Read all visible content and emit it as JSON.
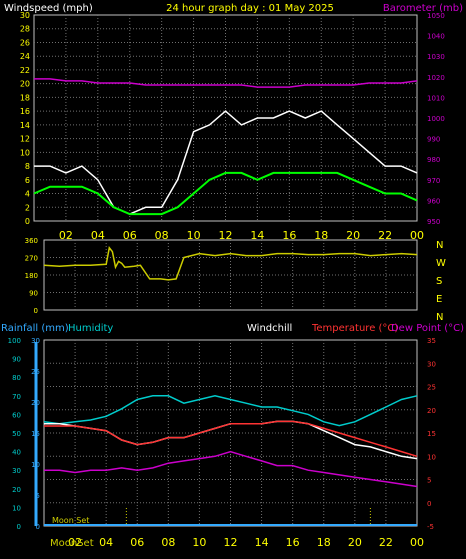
{
  "colors": {
    "background": "#000000",
    "frame": "#c0c0c0",
    "grid": "#707070",
    "axis_text": "#ffff00",
    "title": "#ffff00",
    "windspeed_label": "#ffffff",
    "barometer": "#cc00cc",
    "gust": "#ffffff",
    "average_wind": "#00ff00",
    "direction": "#cccc00",
    "rainfall": "#33aaff",
    "humidity": "#00cccc",
    "windchill": "#ffffff",
    "temperature": "#ff3333",
    "dewpoint": "#cc00cc",
    "moon": "#cccc00"
  },
  "header": {
    "windspeed_label": "Windspeed (mph)",
    "title": "24 hour graph day : 01 May 2025",
    "barometer_label": "Barometer (mb)"
  },
  "panel3_header": {
    "rainfall_label": "Rainfall (mm)",
    "humidity_label": "Humidity",
    "windchill_label": "Windchill",
    "temperature_label": "Temperature (°C)",
    "dewpoint_label": "Dew Point (°C)"
  },
  "x_ticks": [
    "02",
    "04",
    "06",
    "08",
    "10",
    "12",
    "14",
    "16",
    "18",
    "20",
    "22",
    "00"
  ],
  "chart_data": [
    {
      "type": "line",
      "x": [
        0,
        1,
        2,
        3,
        4,
        5,
        6,
        7,
        8,
        9,
        10,
        11,
        12,
        13,
        14,
        15,
        16,
        17,
        18,
        19,
        20,
        21,
        22,
        23,
        24
      ],
      "series": [
        {
          "values": [
            8,
            8,
            7,
            8,
            6,
            2,
            1,
            2,
            2,
            6,
            13,
            14,
            16,
            14,
            15,
            15,
            16,
            15,
            16,
            14,
            12,
            10,
            8,
            8,
            7
          ]
        },
        {
          "values": [
            4,
            5,
            5,
            5,
            4,
            2,
            1,
            1,
            1,
            2,
            4,
            6,
            7,
            7,
            6,
            7,
            7,
            7,
            7,
            7,
            6,
            5,
            4,
            4,
            3
          ]
        },
        {
          "values": [
            1019,
            1019,
            1018,
            1018,
            1017,
            1017,
            1017,
            1016,
            1016,
            1016,
            1016,
            1016,
            1016,
            1016,
            1015,
            1015,
            1015,
            1016,
            1016,
            1016,
            1016,
            1017,
            1017,
            1017,
            1018
          ]
        }
      ],
      "y_left_ticks": [
        0,
        2,
        4,
        6,
        8,
        10,
        12,
        14,
        16,
        18,
        20,
        22,
        24,
        26,
        28,
        30
      ],
      "y_right_ticks": [
        950,
        960,
        970,
        980,
        990,
        1000,
        1010,
        1020,
        1030,
        1040,
        1050
      ],
      "ylim_left": [
        0,
        30
      ],
      "ylim_right": [
        950,
        1050
      ],
      "grid": true
    },
    {
      "type": "line",
      "x": [
        0,
        1,
        2,
        3,
        4,
        4.2,
        4.4,
        4.6,
        4.8,
        5,
        5.2,
        5.8,
        6.2,
        6.8,
        7,
        7.5,
        8,
        8.5,
        9,
        10,
        11,
        12,
        13,
        14,
        15,
        16,
        17,
        18,
        19,
        20,
        21,
        22,
        23,
        24
      ],
      "series": [
        {
          "values": [
            230,
            225,
            230,
            230,
            235,
            320,
            300,
            220,
            250,
            240,
            220,
            225,
            230,
            160,
            160,
            160,
            155,
            160,
            270,
            290,
            280,
            290,
            280,
            280,
            290,
            290,
            285,
            285,
            290,
            290,
            280,
            285,
            290,
            285
          ]
        }
      ],
      "y_left_ticks": [
        0,
        90,
        180,
        270,
        360
      ],
      "y_right_ticks": [
        "N",
        "W",
        "S",
        "E",
        "N"
      ],
      "ylim": [
        0,
        360
      ],
      "grid": true
    },
    {
      "type": "line",
      "x": [
        0,
        1,
        2,
        3,
        4,
        5,
        6,
        7,
        8,
        9,
        10,
        11,
        12,
        13,
        14,
        15,
        16,
        17,
        18,
        19,
        20,
        21,
        22,
        23,
        24
      ],
      "series": [
        {
          "values": [
            56,
            55,
            56,
            57,
            59,
            63,
            68,
            70,
            70,
            66,
            68,
            70,
            68,
            66,
            64,
            64,
            62,
            60,
            56,
            54,
            56,
            60,
            64,
            68,
            70
          ]
        },
        {
          "values": [
            16.5,
            16.5,
            16.5,
            16,
            15.5,
            13.5,
            12.5,
            13,
            14,
            14,
            15,
            16,
            17,
            17,
            17,
            17.5,
            17.5,
            17,
            16,
            15,
            14,
            13,
            12,
            11,
            10
          ]
        },
        {
          "values": [
            17,
            17,
            16.5,
            16,
            15.5,
            13.5,
            12.5,
            13,
            14,
            14,
            15,
            16,
            17,
            17,
            17,
            17.5,
            17.5,
            17,
            15.5,
            14,
            12.5,
            12,
            11,
            10,
            9.5
          ]
        },
        {
          "values": [
            7,
            7,
            6.5,
            7,
            7,
            7.5,
            7,
            7.5,
            8.5,
            9,
            9.5,
            10,
            11,
            10,
            9,
            8,
            8,
            7,
            6.5,
            6,
            5.5,
            5,
            4.5,
            4,
            3.5
          ]
        }
      ],
      "y_left_ticks": [
        0,
        10,
        20,
        30,
        40,
        50,
        60,
        70,
        80,
        90,
        100
      ],
      "y_rain_ticks": [
        0,
        5,
        10,
        15,
        20,
        25,
        30
      ],
      "y_right_ticks": [
        -5,
        0,
        5,
        10,
        15,
        20,
        25,
        30,
        35
      ],
      "ylim_left": [
        0,
        100
      ],
      "ylim_right": [
        -5,
        35
      ],
      "grid": true
    }
  ],
  "moon": {
    "set_label": "Moon Set",
    "moonset_label": "MoonSet",
    "events_hours": [
      5.3,
      21.0
    ]
  }
}
